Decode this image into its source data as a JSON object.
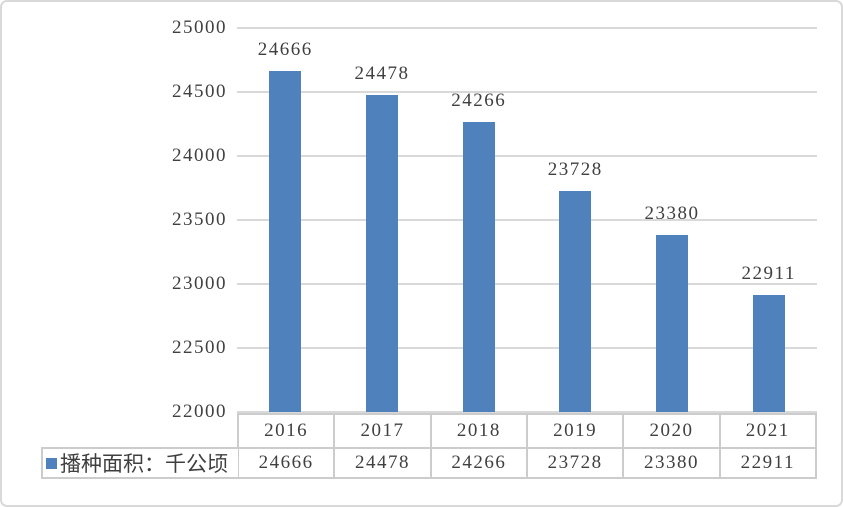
{
  "chart_data": {
    "type": "bar",
    "categories": [
      "2016",
      "2017",
      "2018",
      "2019",
      "2020",
      "2021"
    ],
    "series": [
      {
        "name": "播种面积：千公顷",
        "values": [
          24666,
          24478,
          24266,
          23728,
          23380,
          22911
        ]
      }
    ],
    "title": "",
    "xlabel": "",
    "ylabel": "",
    "ylim": [
      22000,
      25000
    ],
    "yticks": [
      25000,
      24500,
      24000,
      23500,
      23000,
      22500,
      22000
    ],
    "grid": true,
    "data_labels": true,
    "legend_position": "bottom-left",
    "colors": {
      "bar": "#4F81BD",
      "gridline": "#D9D9D9",
      "text": "#404040",
      "table_border": "#CCCCCC",
      "frame_border": "#D9D9D9"
    }
  },
  "legend": {
    "label": "播种面积：千公顷",
    "swatch_color": "#4F81BD"
  }
}
